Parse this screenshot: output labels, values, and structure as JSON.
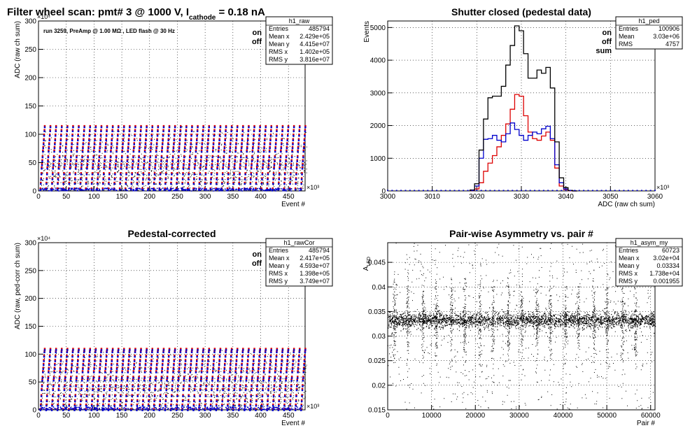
{
  "canvas_title": {
    "prefix": "Filter wheel scan: pmt#   3 @  1000 V, I",
    "subscript": "cathode",
    "suffix": " = 0.18 nA"
  },
  "panels": [
    {
      "id": "raw",
      "title": "",
      "run_text": "run 3259, PreAmp @ 1.00 MΩ , LED flash @   30 Hz",
      "legend_words": [
        "on",
        "off"
      ],
      "stats": {
        "name": "h1_raw",
        "rows": [
          [
            "Entries",
            "485794"
          ],
          [
            "Mean x",
            "2.429e+05"
          ],
          [
            "Mean y",
            "4.415e+07"
          ],
          [
            "RMS x",
            "1.402e+05"
          ],
          [
            "RMS y",
            "3.816e+07"
          ]
        ]
      }
    },
    {
      "id": "ped",
      "title": "Shutter closed (pedestal data)",
      "legend_words": [
        "on",
        "off",
        "sum"
      ],
      "stats": {
        "name": "h1_ped",
        "rows": [
          [
            "Entries",
            "100906"
          ],
          [
            "Mean",
            "3.03e+06"
          ],
          [
            "RMS",
            "4757"
          ]
        ]
      }
    },
    {
      "id": "cor",
      "title": "Pedestal-corrected",
      "legend_words": [
        "on",
        "off"
      ],
      "stats": {
        "name": "h1_rawCor",
        "rows": [
          [
            "Entries",
            "485794"
          ],
          [
            "Mean x",
            "2.417e+05"
          ],
          [
            "Mean y",
            "4.593e+07"
          ],
          [
            "RMS x",
            "1.398e+05"
          ],
          [
            "RMS y",
            "3.749e+07"
          ]
        ]
      }
    },
    {
      "id": "asym",
      "title": "Pair-wise Asymmetry vs. pair #",
      "legend_words": [],
      "stats": {
        "name": "h1_asym_my",
        "rows": [
          [
            "Entries",
            "60723"
          ],
          [
            "Mean x",
            "3.02e+04"
          ],
          [
            "Mean y",
            "0.03334"
          ],
          [
            "RMS x",
            "1.738e+04"
          ],
          [
            "RMS y",
            "0.001955"
          ]
        ]
      }
    }
  ],
  "chart_data": [
    {
      "type": "scatter",
      "xlabel": "Event #",
      "x_exponent": "×10³",
      "ylabel": "ADC (raw ch sum)",
      "y_exponent": "×10⁴",
      "xlim": [
        0,
        480
      ],
      "ylim": [
        0,
        300
      ],
      "x_ticks": [
        0,
        50,
        100,
        150,
        200,
        250,
        300,
        350,
        400,
        450
      ],
      "y_ticks": [
        0,
        50,
        100,
        150,
        200,
        250,
        300
      ],
      "grid": true,
      "series": [
        {
          "name": "on",
          "color": "#dd0000"
        },
        {
          "name": "off",
          "color": "#0000cc"
        }
      ],
      "level_y": [
        5,
        15,
        23,
        32,
        42,
        48,
        55,
        62,
        72,
        78,
        85,
        92,
        100,
        108,
        115
      ],
      "cycle_period": 10.2
    },
    {
      "type": "line",
      "xlabel": "ADC (raw ch sum)",
      "x_exponent": "×10³",
      "ylabel": "Events",
      "xlim": [
        3000,
        3060
      ],
      "ylim": [
        0,
        5200
      ],
      "x_ticks": [
        3000,
        3010,
        3020,
        3030,
        3040,
        3050,
        3060
      ],
      "y_ticks": [
        0,
        1000,
        2000,
        3000,
        4000,
        5000
      ],
      "grid": true,
      "x": [
        3019,
        3020,
        3021,
        3022,
        3023,
        3024,
        3025,
        3026,
        3027,
        3028,
        3029,
        3030,
        3031,
        3032,
        3033,
        3034,
        3035,
        3036,
        3037,
        3038,
        3039,
        3040,
        3041,
        3042
      ],
      "series": [
        {
          "name": "on",
          "color": "#dd0000",
          "values": [
            10,
            60,
            250,
            600,
            850,
            1080,
            1350,
            1700,
            2050,
            2500,
            2950,
            2900,
            2300,
            1800,
            1600,
            1550,
            1680,
            1800,
            1550,
            700,
            150,
            40,
            5,
            0
          ]
        },
        {
          "name": "off",
          "color": "#0000cc",
          "values": [
            20,
            150,
            1000,
            1580,
            1600,
            1700,
            1550,
            1500,
            1750,
            2080,
            1880,
            1700,
            1550,
            1700,
            1800,
            1750,
            1900,
            1980,
            1600,
            800,
            250,
            60,
            10,
            0
          ]
        },
        {
          "name": "sum",
          "color": "#000000",
          "values": [
            30,
            220,
            1250,
            2200,
            2850,
            2900,
            2900,
            3200,
            3850,
            4450,
            5050,
            4900,
            4200,
            3450,
            3450,
            3700,
            3600,
            3780,
            3150,
            1500,
            400,
            100,
            15,
            0
          ]
        }
      ],
      "baseline": {
        "color": "#0000cc",
        "value": 0
      }
    },
    {
      "type": "scatter",
      "xlabel": "Event #",
      "x_exponent": "×10³",
      "ylabel": "ADC (raw, ped-corr ch sum)",
      "y_exponent": "×10⁴",
      "xlim": [
        0,
        480
      ],
      "ylim": [
        0,
        300
      ],
      "x_ticks": [
        0,
        50,
        100,
        150,
        200,
        250,
        300,
        350,
        400,
        450
      ],
      "y_ticks": [
        0,
        50,
        100,
        150,
        200,
        250,
        300
      ],
      "grid": true,
      "series": [
        {
          "name": "on",
          "color": "#dd0000"
        },
        {
          "name": "off",
          "color": "#0000cc"
        }
      ],
      "level_y": [
        2,
        10,
        18,
        27,
        38,
        45,
        55,
        60,
        70,
        76,
        83,
        90,
        98,
        106,
        110
      ],
      "cycle_period": 10.2
    },
    {
      "type": "scatter",
      "xlabel": "Pair #",
      "ylabel": "A_LED",
      "xlim": [
        0,
        61000
      ],
      "ylim": [
        0.015,
        0.049
      ],
      "x_ticks": [
        0,
        10000,
        20000,
        30000,
        40000,
        50000,
        60000
      ],
      "y_ticks": [
        0.015,
        0.02,
        0.025,
        0.03,
        0.035,
        0.04,
        0.045
      ],
      "grid": true,
      "series": [
        {
          "name": "",
          "color": "#000000"
        }
      ],
      "band_center": 0.0333,
      "band_rms": 0.00075,
      "spike_positions": [
        1500,
        4500,
        8000,
        11000,
        14500,
        17500,
        21000,
        24000,
        27500,
        30500,
        34000,
        37000,
        40500,
        43500,
        47000,
        50000,
        53500,
        56500
      ]
    }
  ]
}
